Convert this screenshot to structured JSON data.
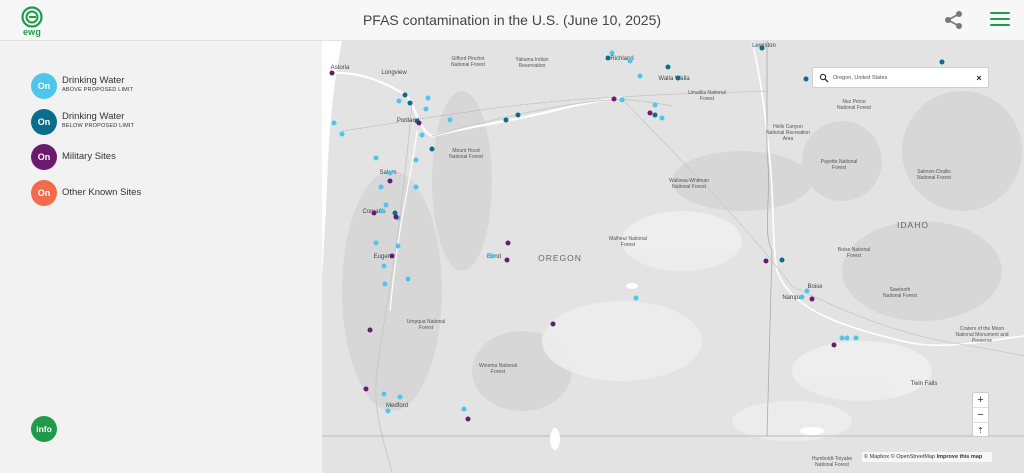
{
  "header": {
    "title": "PFAS contamination in the U.S. (June 10, 2025)",
    "logo_text": "ewg",
    "brand_color": "#1e9a4a"
  },
  "legend": [
    {
      "label": "Drinking Water",
      "sub": "ABOVE PROPOSED LIMIT",
      "toggle": "On",
      "color": "#4ec6ec"
    },
    {
      "label": "Drinking Water",
      "sub": "BELOW PROPOSED LIMIT",
      "toggle": "On",
      "color": "#0b6d8c"
    },
    {
      "label": "Military Sites",
      "sub": "",
      "toggle": "On",
      "color": "#6a1b70"
    },
    {
      "label": "Other Known Sites",
      "sub": "",
      "toggle": "On",
      "color": "#f26b4a"
    }
  ],
  "info_label": "info",
  "search": {
    "value": "Oregon, United States",
    "clear_label": "×"
  },
  "zoom": {
    "in": "+",
    "out": "−",
    "reset": "⇡"
  },
  "attribution": {
    "mapbox": "© Mapbox",
    "osm": "© OpenStreetMap",
    "improve": "Improve this map"
  },
  "map_labels": {
    "states": [
      "OREGON",
      "IDAHO"
    ],
    "cities": [
      "Astoria",
      "Longview",
      "Portland",
      "Salem",
      "Corvallis",
      "Eugene",
      "Bend",
      "Medford",
      "Richland",
      "Walla Walla",
      "Lewiston",
      "Boise",
      "Nampa",
      "Twin Falls"
    ],
    "forests": [
      "Gifford Pinchot National Forest",
      "Yakama Indian Reservation",
      "Umatilla National Forest",
      "Nez Perce National Forest",
      "Hells Canyon National Recreation Area",
      "Payette National Forest",
      "Salmon-Challis National Forest",
      "Mount Hood National Forest",
      "Wallowa-Whitman National Forest",
      "Malheur National Forest",
      "Boise National Forest",
      "Sawtooth National Forest",
      "Umpqua National Forest",
      "Winema National Forest",
      "Craters of the Moon National Monument and Preserve",
      "Humboldt-Toiyabe National Forest"
    ]
  },
  "icons": {
    "logo": "ewg-logo-icon",
    "share": "share-icon",
    "menu": "hamburger-menu-icon",
    "search": "search-icon"
  }
}
